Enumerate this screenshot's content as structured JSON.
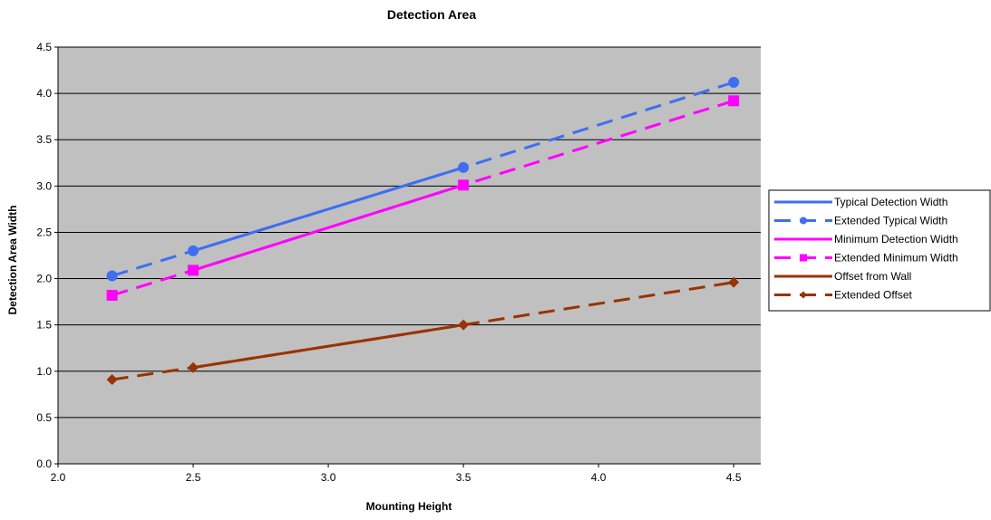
{
  "chart_data": {
    "type": "line",
    "title": "Detection Area",
    "xlabel": "Mounting Height",
    "ylabel": "Detection Area Width",
    "xlim": [
      2.0,
      4.6
    ],
    "ylim": [
      0.0,
      4.5
    ],
    "x_ticks": [
      "2.0",
      "2.5",
      "3.0",
      "3.5",
      "4.0",
      "4.5"
    ],
    "y_ticks": [
      "0.0",
      "0.5",
      "1.0",
      "1.5",
      "2.0",
      "2.5",
      "3.0",
      "3.5",
      "4.0",
      "4.5"
    ],
    "grid": "horizontal",
    "legend_position": "right",
    "plot_background": "#c0c0c0",
    "series": [
      {
        "name": "Typical Detection Width",
        "color": "#3f6ff0",
        "dash": "solid",
        "marker": "none",
        "x": [
          2.5,
          3.5
        ],
        "y": [
          2.3,
          3.2
        ]
      },
      {
        "name": "Extended Typical Width",
        "color": "#3f6ff0",
        "dash": "dashed",
        "marker": "circle",
        "x": [
          2.2,
          2.5,
          3.5,
          4.5
        ],
        "y": [
          2.03,
          2.3,
          3.2,
          4.12
        ]
      },
      {
        "name": "Minimum Detection Width",
        "color": "#ff00ff",
        "dash": "solid",
        "marker": "none",
        "x": [
          2.5,
          3.5
        ],
        "y": [
          2.09,
          3.01
        ]
      },
      {
        "name": "Extended Minimum Width",
        "color": "#ff00ff",
        "dash": "dashed",
        "marker": "square",
        "x": [
          2.2,
          2.5,
          3.5,
          4.5
        ],
        "y": [
          1.82,
          2.09,
          3.01,
          3.92
        ]
      },
      {
        "name": "Offset from Wall",
        "color": "#993300",
        "dash": "solid",
        "marker": "none",
        "x": [
          2.5,
          3.5
        ],
        "y": [
          1.04,
          1.5
        ]
      },
      {
        "name": "Extended Offset",
        "color": "#993300",
        "dash": "dashed",
        "marker": "diamond",
        "x": [
          2.2,
          2.5,
          3.5,
          4.5
        ],
        "y": [
          0.91,
          1.04,
          1.5,
          1.96
        ]
      }
    ]
  }
}
